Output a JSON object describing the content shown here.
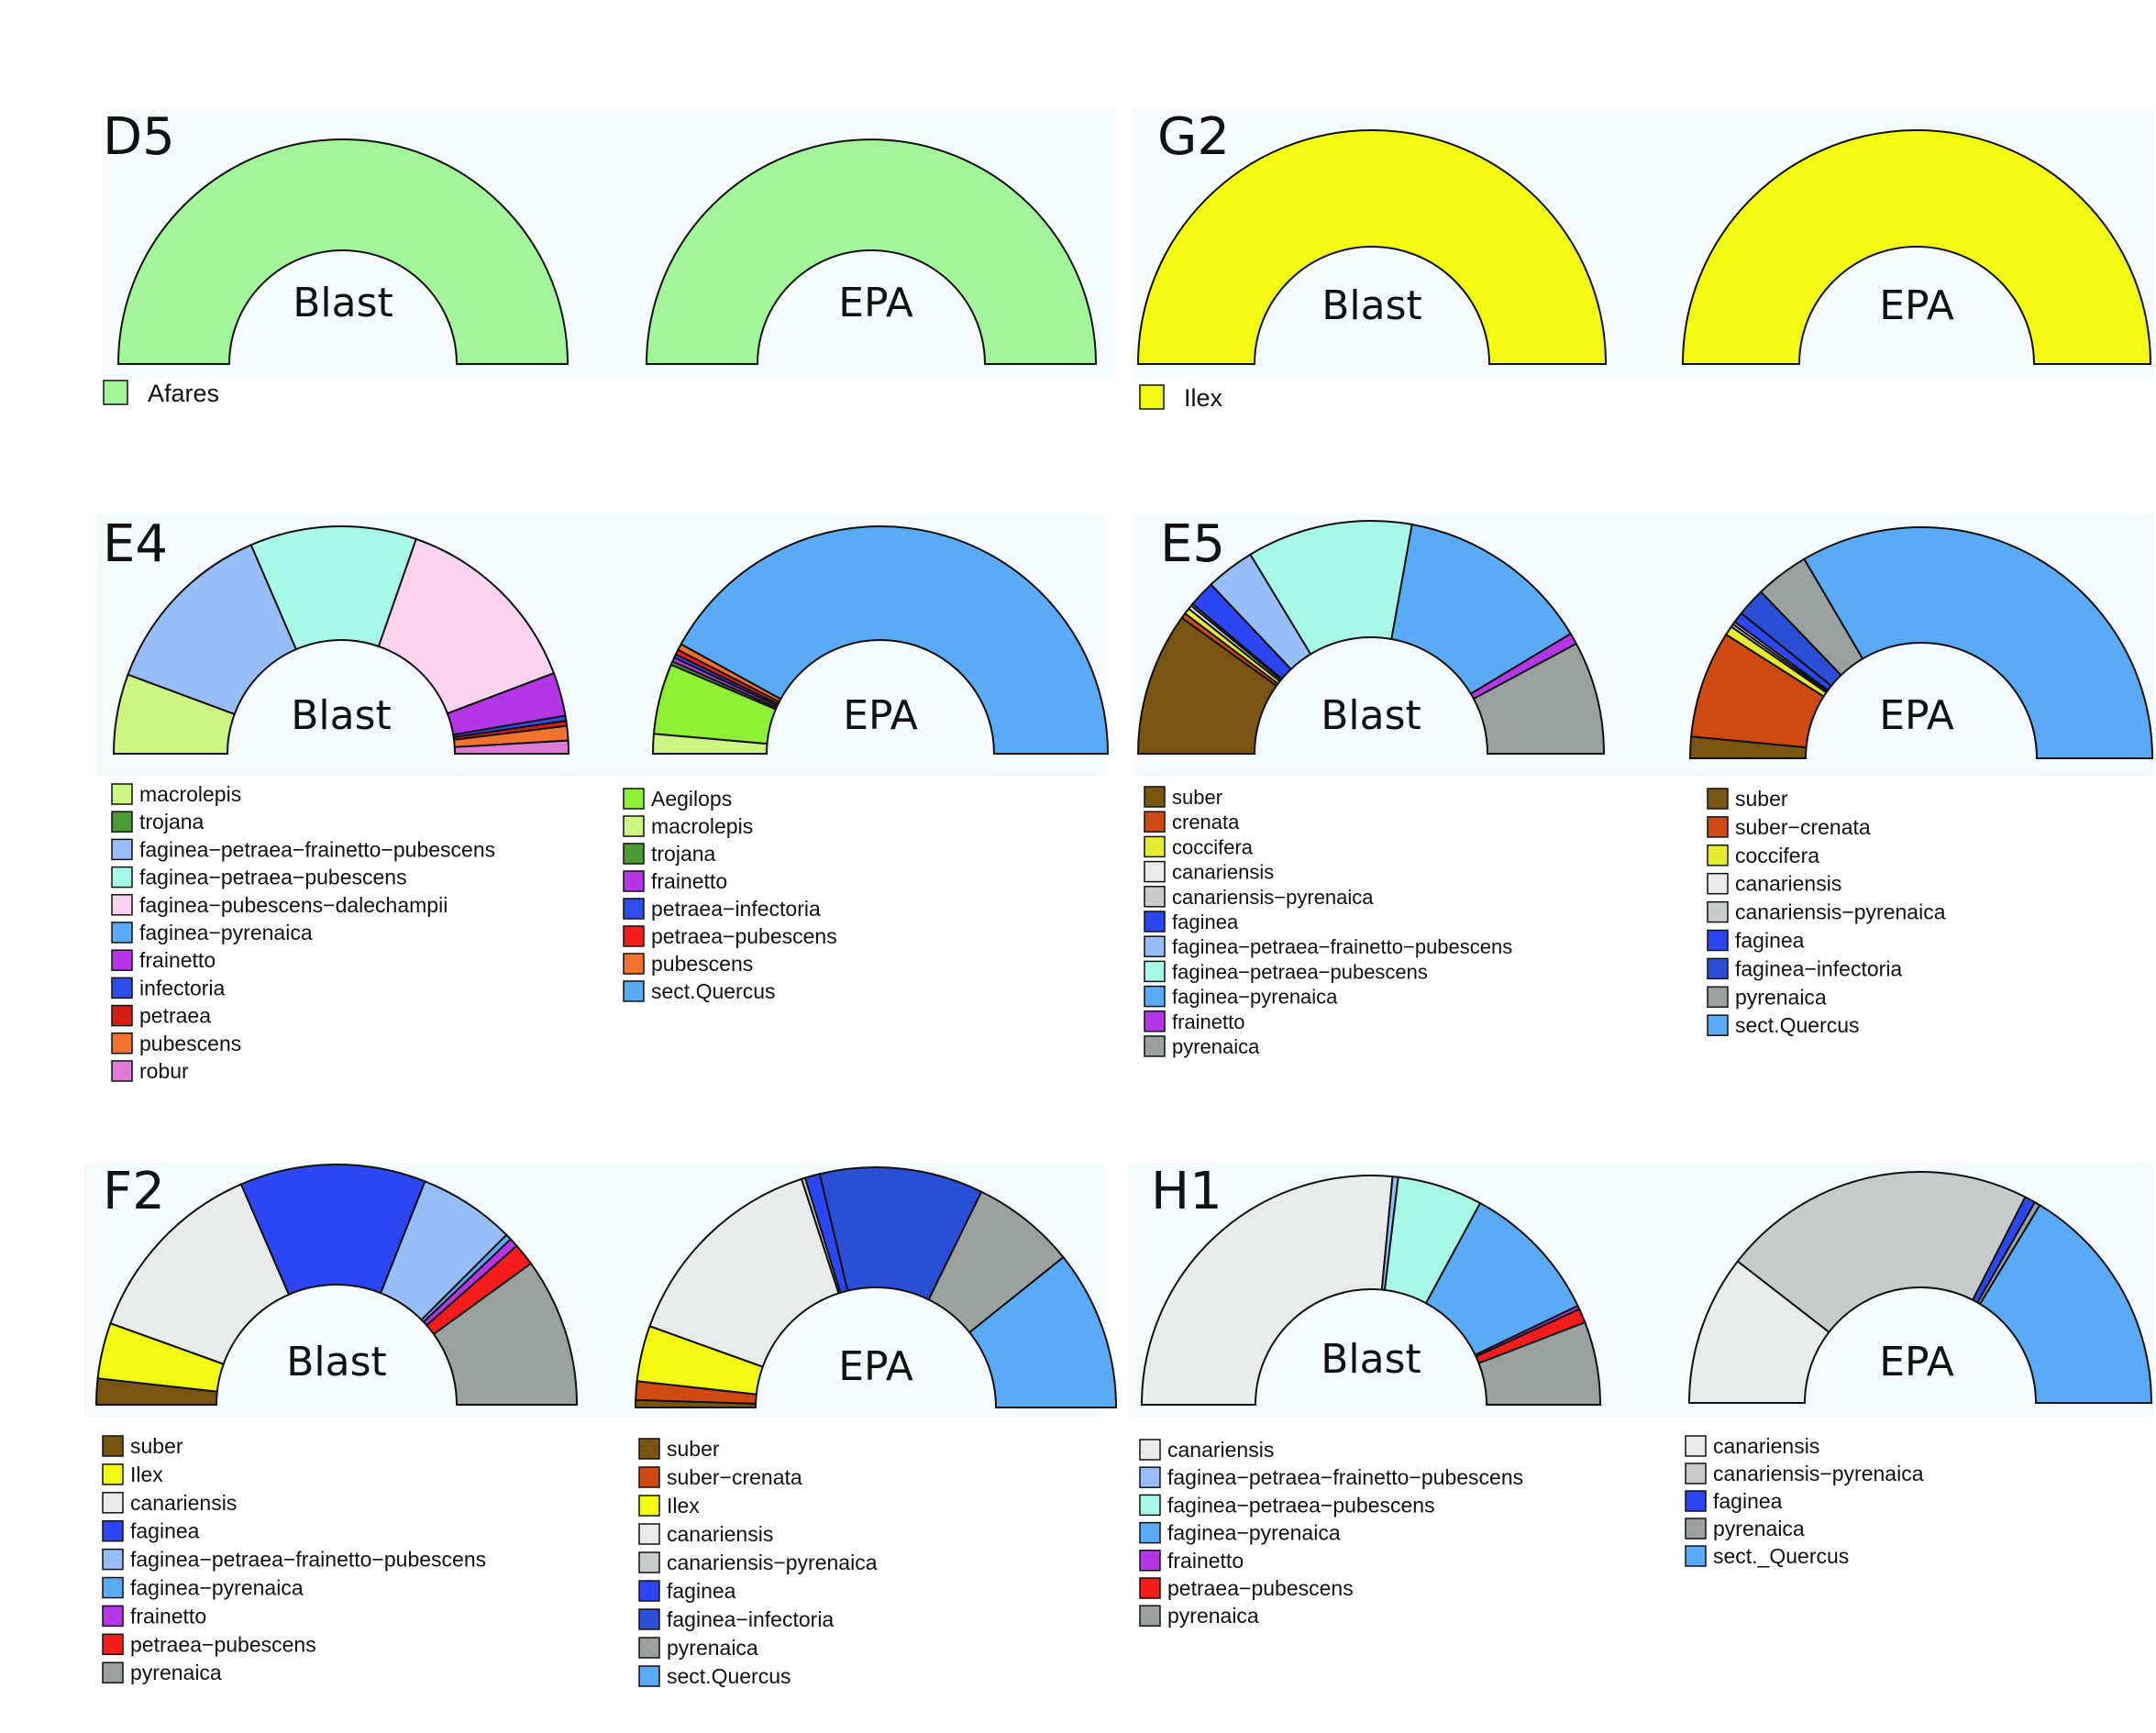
{
  "colors": {
    "Afares": "#a3f59a",
    "Ilex": "#f2fa14",
    "macrolepis": "#ccf583",
    "trojana": "#4c9a36",
    "Aegilops": "#8ef034",
    "faginea-petraea-frainetto-pubescens": "#98befa",
    "faginea-petraea-pubescens": "#a8f8e8",
    "faginea-pubescens-dalechampii": "#fbd2f0",
    "faginea-pyrenaica": "#5aaaf5",
    "sect.Quercus": "#5aaaf5",
    "sect._Quercus": "#5aaaf5",
    "frainetto": "#b436e6",
    "infectoria": "#2f4de8",
    "faginea-infectoria": "#2a4fd6",
    "petraea-infectoria": "#2f4de8",
    "faginea": "#2b46f2",
    "petraea": "#d41e12",
    "petraea-pubescens": "#f51c1c",
    "pubescens": "#f2722e",
    "robur": "#e07ad8",
    "suber": "#7a5412",
    "suber-crenata": "#cf4a12",
    "crenata": "#cf4a12",
    "coccifera": "#e6ec30",
    "canariensis": "#e9ebea",
    "canariensis-pyrenaica": "#c7ccca",
    "pyrenaica": "#9aa19f"
  },
  "chart_data": [
    {
      "panel": "D5",
      "type": "pie",
      "charts": [
        {
          "label": "Blast",
          "slices": [
            {
              "name": "Afares",
              "value": 100
            }
          ]
        },
        {
          "label": "EPA",
          "slices": [
            {
              "name": "Afares",
              "value": 100
            }
          ]
        }
      ],
      "legends": [
        [
          "Afares"
        ]
      ]
    },
    {
      "panel": "G2",
      "type": "pie",
      "charts": [
        {
          "label": "Blast",
          "slices": [
            {
              "name": "Ilex",
              "value": 100
            }
          ]
        },
        {
          "label": "EPA",
          "slices": [
            {
              "name": "Ilex",
              "value": 100
            }
          ]
        }
      ],
      "legends": [
        [
          "Ilex"
        ]
      ]
    },
    {
      "panel": "E4",
      "type": "pie",
      "charts": [
        {
          "label": "Blast",
          "slices": [
            {
              "name": "macrolepis",
              "value": 11
            },
            {
              "name": "faginea-petraea-frainetto-pubescens",
              "value": 25
            },
            {
              "name": "faginea-petraea-pubescens",
              "value": 23
            },
            {
              "name": "faginea-pubescens-dalechampii",
              "value": 27
            },
            {
              "name": "frainetto",
              "value": 6
            },
            {
              "name": "infectoria",
              "value": 0.7
            },
            {
              "name": "petraea",
              "value": 0.7
            },
            {
              "name": "pubescens",
              "value": 2
            },
            {
              "name": "robur",
              "value": 1.8
            }
          ]
        },
        {
          "label": "EPA",
          "slices": [
            {
              "name": "macrolepis",
              "value": 2.8
            },
            {
              "name": "Aegilops",
              "value": 10
            },
            {
              "name": "trojana",
              "value": 0.5
            },
            {
              "name": "frainetto",
              "value": 0.6
            },
            {
              "name": "petraea-infectoria",
              "value": 0.5
            },
            {
              "name": "petraea-pubescens",
              "value": 0.7
            },
            {
              "name": "pubescens",
              "value": 0.9
            },
            {
              "name": "sect.Quercus",
              "value": 84
            }
          ]
        }
      ],
      "legends": [
        [
          "macrolepis",
          "trojana",
          "faginea-petraea-frainetto-pubescens",
          "faginea-petraea-pubescens",
          "faginea-pubescens-dalechampii",
          "faginea-pyrenaica",
          "frainetto",
          "infectoria",
          "petraea",
          "pubescens",
          "robur"
        ],
        [
          "Aegilops",
          "macrolepis",
          "trojana",
          "frainetto",
          "petraea-infectoria",
          "petraea-pubescens",
          "pubescens",
          "sect.Quercus"
        ]
      ]
    },
    {
      "panel": "E5",
      "type": "pie",
      "charts": [
        {
          "label": "Blast",
          "slices": [
            {
              "name": "suber",
              "value": 19
            },
            {
              "name": "crenata",
              "value": 0.7
            },
            {
              "name": "coccifera",
              "value": 0.8
            },
            {
              "name": "canariensis",
              "value": 0.5
            },
            {
              "name": "canariensis-pyrenaica",
              "value": 0.3
            },
            {
              "name": "faginea",
              "value": 3.5
            },
            {
              "name": "faginea-petraea-frainetto-pubescens",
              "value": 6.5
            },
            {
              "name": "faginea-petraea-pubescens",
              "value": 22
            },
            {
              "name": "faginea-pyrenaica",
              "value": 26
            },
            {
              "name": "frainetto",
              "value": 1.5
            },
            {
              "name": "pyrenaica",
              "value": 15
            }
          ]
        },
        {
          "label": "EPA",
          "slices": [
            {
              "name": "suber",
              "value": 3
            },
            {
              "name": "suber-crenata",
              "value": 15
            },
            {
              "name": "coccifera",
              "value": 1.3
            },
            {
              "name": "canariensis",
              "value": 0.4
            },
            {
              "name": "canariensis-pyrenaica",
              "value": 0.4
            },
            {
              "name": "faginea",
              "value": 1.5
            },
            {
              "name": "faginea-infectoria",
              "value": 4
            },
            {
              "name": "pyrenaica",
              "value": 7.5
            },
            {
              "name": "sect.Quercus",
              "value": 66.9
            }
          ]
        }
      ],
      "legends": [
        [
          "suber",
          "crenata",
          "coccifera",
          "canariensis",
          "canariensis-pyrenaica",
          "faginea",
          "faginea-petraea-frainetto-pubescens",
          "faginea-petraea-pubescens",
          "faginea-pyrenaica",
          "frainetto",
          "pyrenaica"
        ],
        [
          "suber",
          "suber-crenata",
          "coccifera",
          "canariensis",
          "canariensis-pyrenaica",
          "faginea",
          "faginea-infectoria",
          "pyrenaica",
          "sect.Quercus"
        ]
      ]
    },
    {
      "panel": "F2",
      "type": "pie",
      "charts": [
        {
          "label": "Blast",
          "slices": [
            {
              "name": "suber",
              "value": 3.5
            },
            {
              "name": "Ilex",
              "value": 7.5
            },
            {
              "name": "canariensis",
              "value": 26
            },
            {
              "name": "faginea",
              "value": 25
            },
            {
              "name": "faginea-petraea-frainetto-pubescens",
              "value": 13
            },
            {
              "name": "faginea-pyrenaica",
              "value": 0.8
            },
            {
              "name": "frainetto",
              "value": 1.2
            },
            {
              "name": "petraea-pubescens",
              "value": 3
            },
            {
              "name": "pyrenaica",
              "value": 20
            }
          ]
        },
        {
          "label": "EPA",
          "slices": [
            {
              "name": "suber",
              "value": 1
            },
            {
              "name": "suber-crenata",
              "value": 2.5
            },
            {
              "name": "Ilex",
              "value": 7.5
            },
            {
              "name": "canariensis",
              "value": 29
            },
            {
              "name": "canariensis-pyrenaica",
              "value": 0.5
            },
            {
              "name": "faginea",
              "value": 2
            },
            {
              "name": "faginea-infectoria",
              "value": 22
            },
            {
              "name": "pyrenaica",
              "value": 14
            },
            {
              "name": "sect.Quercus",
              "value": 21.5
            }
          ]
        }
      ],
      "legends": [
        [
          "suber",
          "Ilex",
          "canariensis",
          "faginea",
          "faginea-petraea-frainetto-pubescens",
          "faginea-pyrenaica",
          "frainetto",
          "petraea-pubescens",
          "pyrenaica"
        ],
        [
          "suber",
          "suber-crenata",
          "Ilex",
          "canariensis",
          "canariensis-pyrenaica",
          "faginea",
          "faginea-infectoria",
          "pyrenaica",
          "sect.Quercus"
        ]
      ]
    },
    {
      "panel": "H1",
      "type": "pie",
      "charts": [
        {
          "label": "Blast",
          "slices": [
            {
              "name": "canariensis",
              "value": 53
            },
            {
              "name": "faginea-petraea-frainetto-pubescens",
              "value": 0.8
            },
            {
              "name": "faginea-petraea-pubescens",
              "value": 12
            },
            {
              "name": "faginea-pyrenaica",
              "value": 20
            },
            {
              "name": "frainetto",
              "value": 0.5
            },
            {
              "name": "petraea-pubescens",
              "value": 2
            },
            {
              "name": "pyrenaica",
              "value": 11.7
            }
          ]
        },
        {
          "label": "EPA",
          "slices": [
            {
              "name": "canariensis",
              "value": 21
            },
            {
              "name": "canariensis-pyrenaica",
              "value": 44
            },
            {
              "name": "faginea",
              "value": 1.5
            },
            {
              "name": "pyrenaica",
              "value": 0.8
            },
            {
              "name": "sect._Quercus",
              "value": 32.7
            }
          ]
        }
      ],
      "legends": [
        [
          "canariensis",
          "faginea-petraea-frainetto-pubescens",
          "faginea-petraea-pubescens",
          "faginea-pyrenaica",
          "frainetto",
          "petraea-pubescens",
          "pyrenaica"
        ],
        [
          "canariensis",
          "canariensis-pyrenaica",
          "faginea",
          "pyrenaica",
          "sect._Quercus"
        ]
      ]
    }
  ],
  "legend_labels": {
    "Afares": "Afares",
    "Ilex": "Ilex",
    "macrolepis": "macrolepis",
    "trojana": "trojana",
    "Aegilops": "Aegilops",
    "faginea-petraea-frainetto-pubescens": "faginea−petraea−frainetto−pubescens",
    "faginea-petraea-pubescens": "faginea−petraea−pubescens",
    "faginea-pubescens-dalechampii": "faginea−pubescens−dalechampii",
    "faginea-pyrenaica": "faginea−pyrenaica",
    "frainetto": "frainetto",
    "infectoria": "infectoria",
    "petraea": "petraea",
    "pubescens": "pubescens",
    "robur": "robur",
    "petraea-infectoria": "petraea−infectoria",
    "petraea-pubescens": "petraea−pubescens",
    "sect.Quercus": "sect.Quercus",
    "sect._Quercus": "sect._Quercus",
    "suber": "suber",
    "crenata": "crenata",
    "suber-crenata": "suber−crenata",
    "coccifera": "coccifera",
    "canariensis": "canariensis",
    "canariensis-pyrenaica": "canariensis−pyrenaica",
    "faginea": "faginea",
    "faginea-infectoria": "faginea−infectoria",
    "pyrenaica": "pyrenaica"
  }
}
